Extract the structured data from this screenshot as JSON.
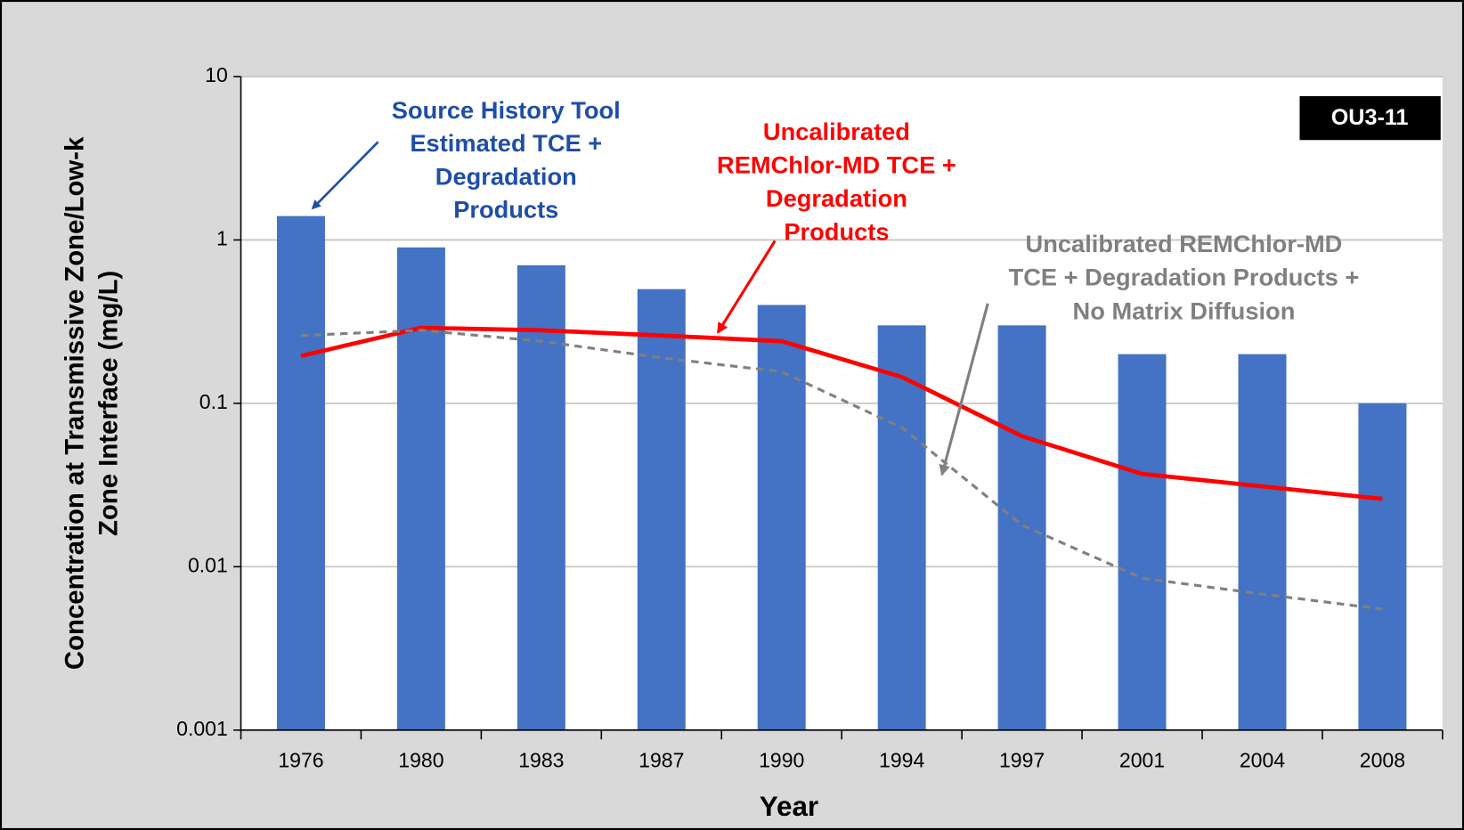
{
  "chart_data": {
    "type": "bar",
    "log_scale": true,
    "grid": true,
    "categories": [
      "1976",
      "1980",
      "1983",
      "1987",
      "1990",
      "1994",
      "1997",
      "2001",
      "2004",
      "2008"
    ],
    "ylim": [
      0.001,
      10
    ],
    "yticks": [
      10,
      1,
      0.1,
      0.01,
      0.001
    ],
    "y_label": [
      "Concentration at Transmissive Zone/Low-k",
      "Zone Interface (mg/L)"
    ],
    "x_label": "Year",
    "badge": "OU3-11",
    "series": [
      {
        "type": "bar",
        "color": "#4472c4",
        "values": [
          1.4,
          0.9,
          0.7,
          0.5,
          0.4,
          0.3,
          0.3,
          0.2,
          0.2,
          0.1
        ]
      },
      {
        "type": "line",
        "color": "#ff0000",
        "values": [
          0.195,
          0.29,
          0.28,
          0.26,
          0.24,
          0.145,
          0.063,
          0.037,
          0.031,
          0.026
        ]
      },
      {
        "type": "line",
        "dashed": true,
        "color": "#808080",
        "values": [
          0.26,
          0.28,
          0.24,
          0.19,
          0.156,
          0.071,
          0.018,
          0.0085,
          0.0068,
          0.0055
        ]
      }
    ],
    "annotations": [
      {
        "color": "#1f4ea8",
        "lines": [
          "Source History Tool",
          "Estimated TCE +",
          "Degradation",
          "Products"
        ]
      },
      {
        "color": "#ff0000",
        "lines": [
          "Uncalibrated",
          "REMChlor-MD TCE +",
          "Degradation",
          "Products"
        ]
      },
      {
        "color": "#808080",
        "lines": [
          "Uncalibrated REMChlor-MD",
          "TCE + Degradation Products +",
          "No Matrix Diffusion"
        ]
      }
    ]
  }
}
